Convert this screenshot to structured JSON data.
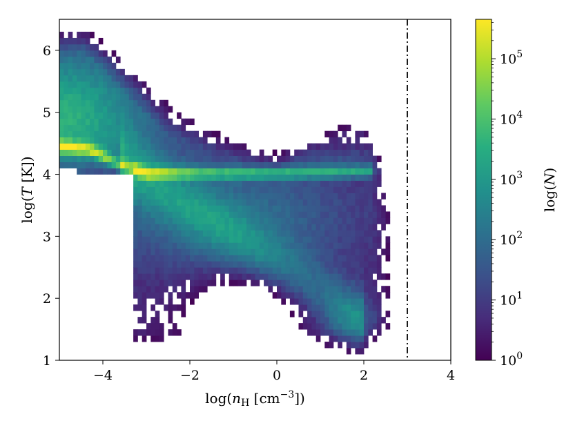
{
  "chart_data": {
    "type": "heatmap",
    "title": "",
    "xlabel": {
      "prefix": "log(",
      "italic": "n",
      "sub": "H",
      "mid": " [cm",
      "sup": "−3",
      "suffix": "])"
    },
    "ylabel": {
      "prefix": "log(",
      "italic": "T",
      "suffix": " [K])"
    },
    "xlim": [
      -5,
      4
    ],
    "ylim": [
      1,
      6.5
    ],
    "xticks": [
      -4,
      -2,
      0,
      2,
      4
    ],
    "xtick_labels": [
      "−4",
      "−2",
      "0",
      "2",
      "4"
    ],
    "yticks": [
      1,
      2,
      3,
      4,
      5,
      6
    ],
    "ytick_labels": [
      "1",
      "2",
      "3",
      "4",
      "5",
      "6"
    ],
    "grid": false,
    "colormap": "viridis",
    "colorbar": {
      "label": {
        "prefix": "log(",
        "italic": "N",
        "suffix": ")"
      },
      "scale": "log",
      "range": [
        1,
        450000
      ],
      "ticks": [
        {
          "base": "10",
          "exp": "0",
          "value": 1
        },
        {
          "base": "10",
          "exp": "1",
          "value": 10
        },
        {
          "base": "10",
          "exp": "2",
          "value": 100
        },
        {
          "base": "10",
          "exp": "3",
          "value": 1000
        },
        {
          "base": "10",
          "exp": "4",
          "value": 10000
        },
        {
          "base": "10",
          "exp": "5",
          "value": 100000
        }
      ]
    },
    "vertical_line": {
      "x": 3.0,
      "style": "dash-dot",
      "color": "#000000"
    },
    "bins": {
      "nx": 90,
      "ny": 55
    }
  }
}
